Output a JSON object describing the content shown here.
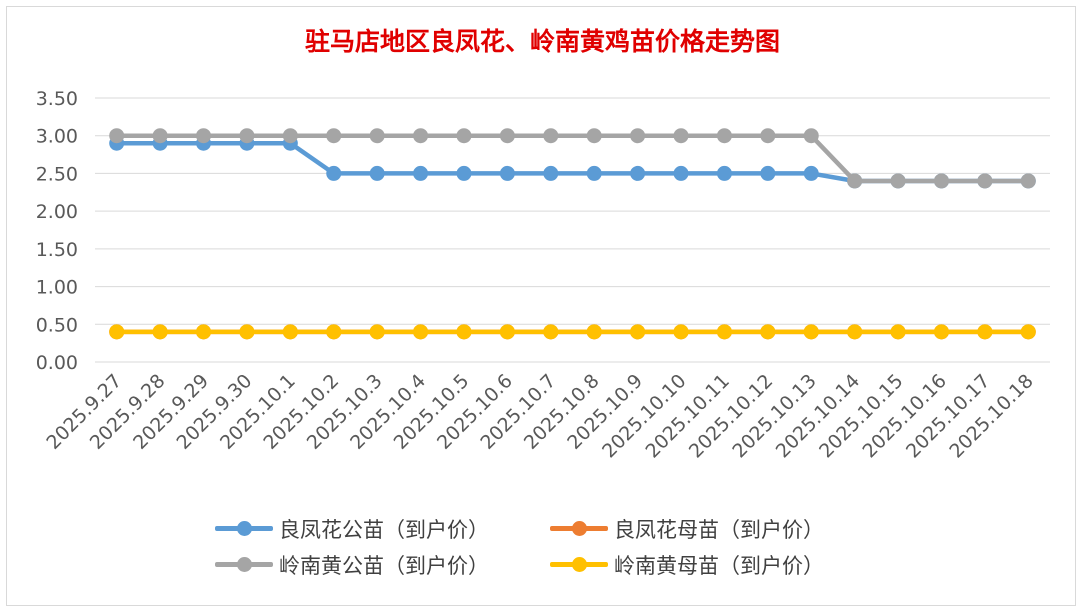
{
  "chart_data": {
    "type": "line",
    "title": "驻马店地区良凤花、岭南黄鸡苗价格走势图",
    "categories": [
      "2025.9.27",
      "2025.9.28",
      "2025.9.29",
      "2025.9.30",
      "2025.10.1",
      "2025.10.2",
      "2025.10.3",
      "2025.10.4",
      "2025.10.5",
      "2025.10.6",
      "2025.10.7",
      "2025.10.8",
      "2025.10.9",
      "2025.10.10",
      "2025.10.11",
      "2025.10.12",
      "2025.10.13",
      "2025.10.14",
      "2025.10.15",
      "2025.10.16",
      "2025.10.17",
      "2025.10.18"
    ],
    "ylim": [
      0,
      3.5
    ],
    "yticks": [
      "0.00",
      "0.50",
      "1.00",
      "1.50",
      "2.00",
      "2.50",
      "3.00",
      "3.50"
    ],
    "grid": true,
    "legend_position": "bottom",
    "series": [
      {
        "name": "良凤花公苗（到户价）",
        "color": "#5b9bd5",
        "values": [
          2.9,
          2.9,
          2.9,
          2.9,
          2.9,
          2.5,
          2.5,
          2.5,
          2.5,
          2.5,
          2.5,
          2.5,
          2.5,
          2.5,
          2.5,
          2.5,
          2.5,
          2.4,
          2.4,
          2.4,
          2.4,
          2.4
        ]
      },
      {
        "name": "良凤花母苗（到户价）",
        "color": "#ed7d31",
        "values": [
          0.4,
          0.4,
          0.4,
          0.4,
          0.4,
          0.4,
          0.4,
          0.4,
          0.4,
          0.4,
          0.4,
          0.4,
          0.4,
          0.4,
          0.4,
          0.4,
          0.4,
          0.4,
          0.4,
          0.4,
          0.4,
          0.4
        ]
      },
      {
        "name": "岭南黄公苗（到户价）",
        "color": "#a5a5a5",
        "values": [
          3.0,
          3.0,
          3.0,
          3.0,
          3.0,
          3.0,
          3.0,
          3.0,
          3.0,
          3.0,
          3.0,
          3.0,
          3.0,
          3.0,
          3.0,
          3.0,
          3.0,
          2.4,
          2.4,
          2.4,
          2.4,
          2.4
        ]
      },
      {
        "name": "岭南黄母苗（到户价）",
        "color": "#ffc000",
        "values": [
          0.4,
          0.4,
          0.4,
          0.4,
          0.4,
          0.4,
          0.4,
          0.4,
          0.4,
          0.4,
          0.4,
          0.4,
          0.4,
          0.4,
          0.4,
          0.4,
          0.4,
          0.4,
          0.4,
          0.4,
          0.4,
          0.4
        ]
      }
    ]
  }
}
